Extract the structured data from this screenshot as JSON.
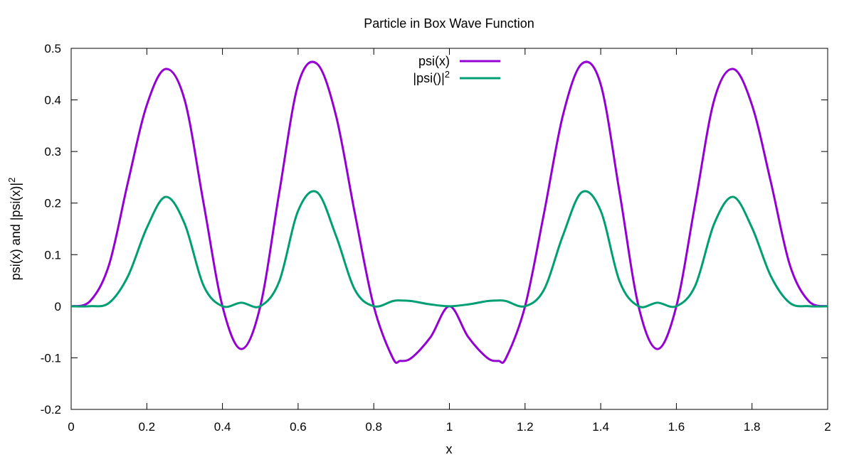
{
  "chart_data": {
    "type": "line",
    "title": "Particle in Box Wave Function",
    "xlabel": "x",
    "ylabel": {
      "text": "psi(x) and |psi(x)|",
      "sup": "2"
    },
    "xlim": [
      0,
      2
    ],
    "ylim": [
      -0.2,
      0.5
    ],
    "xticks": [
      0,
      0.2,
      0.4,
      0.6,
      0.8,
      1,
      1.2,
      1.4,
      1.6,
      1.8,
      2
    ],
    "yticks": [
      -0.2,
      -0.1,
      0,
      0.1,
      0.2,
      0.3,
      0.4,
      0.5
    ],
    "xtick_labels": [
      "0",
      "0.2",
      "0.4",
      "0.6",
      "0.8",
      "1",
      "1.2",
      "1.4",
      "1.6",
      "1.8",
      "2"
    ],
    "ytick_labels": [
      "-0.2",
      "-0.1",
      "0",
      "0.1",
      "0.2",
      "0.3",
      "0.4",
      "0.5"
    ],
    "grid": false,
    "legend": {
      "placement": "top-center"
    },
    "series": [
      {
        "name": "psi(x)",
        "name_sup": "",
        "color": "#9400d3",
        "x": [
          0,
          0.05,
          0.1,
          0.15,
          0.2,
          0.25,
          0.3,
          0.35,
          0.4,
          0.45,
          0.5,
          0.55,
          0.6,
          0.65,
          0.7,
          0.75,
          0.8,
          0.85,
          0.87,
          0.9,
          0.95,
          1.0,
          1.05,
          1.1,
          1.13,
          1.15,
          1.2,
          1.25,
          1.3,
          1.35,
          1.4,
          1.45,
          1.5,
          1.55,
          1.6,
          1.65,
          1.7,
          1.75,
          1.8,
          1.85,
          1.9,
          1.95,
          2.0
        ],
        "y": [
          0,
          0.01,
          0.08,
          0.24,
          0.39,
          0.46,
          0.4,
          0.2,
          0.0,
          -0.083,
          0.0,
          0.22,
          0.43,
          0.47,
          0.37,
          0.18,
          0.0,
          -0.1,
          -0.106,
          -0.1,
          -0.06,
          0.0,
          -0.06,
          -0.1,
          -0.106,
          -0.1,
          0.0,
          0.18,
          0.37,
          0.47,
          0.43,
          0.22,
          0.0,
          -0.083,
          0.0,
          0.2,
          0.4,
          0.46,
          0.39,
          0.24,
          0.08,
          0.01,
          0
        ]
      },
      {
        "name": "|psi()|",
        "name_sup": "2",
        "color": "#009e73",
        "x": [
          0,
          0.05,
          0.1,
          0.15,
          0.2,
          0.25,
          0.3,
          0.35,
          0.4,
          0.45,
          0.5,
          0.55,
          0.6,
          0.65,
          0.7,
          0.75,
          0.8,
          0.85,
          0.87,
          0.9,
          0.95,
          1.0,
          1.05,
          1.1,
          1.13,
          1.15,
          1.2,
          1.25,
          1.3,
          1.35,
          1.4,
          1.45,
          1.5,
          1.55,
          1.6,
          1.65,
          1.7,
          1.75,
          1.8,
          1.85,
          1.9,
          1.95,
          2.0
        ],
        "y": [
          0,
          0.0001,
          0.0064,
          0.058,
          0.152,
          0.212,
          0.16,
          0.04,
          0.0,
          0.0069,
          0.0,
          0.048,
          0.185,
          0.221,
          0.137,
          0.032,
          0.0,
          0.01,
          0.0112,
          0.01,
          0.0036,
          0.0,
          0.0036,
          0.01,
          0.0112,
          0.01,
          0.0,
          0.032,
          0.137,
          0.221,
          0.185,
          0.048,
          0.0,
          0.0069,
          0.0,
          0.04,
          0.16,
          0.212,
          0.152,
          0.058,
          0.0064,
          0.0001,
          0
        ]
      }
    ]
  }
}
